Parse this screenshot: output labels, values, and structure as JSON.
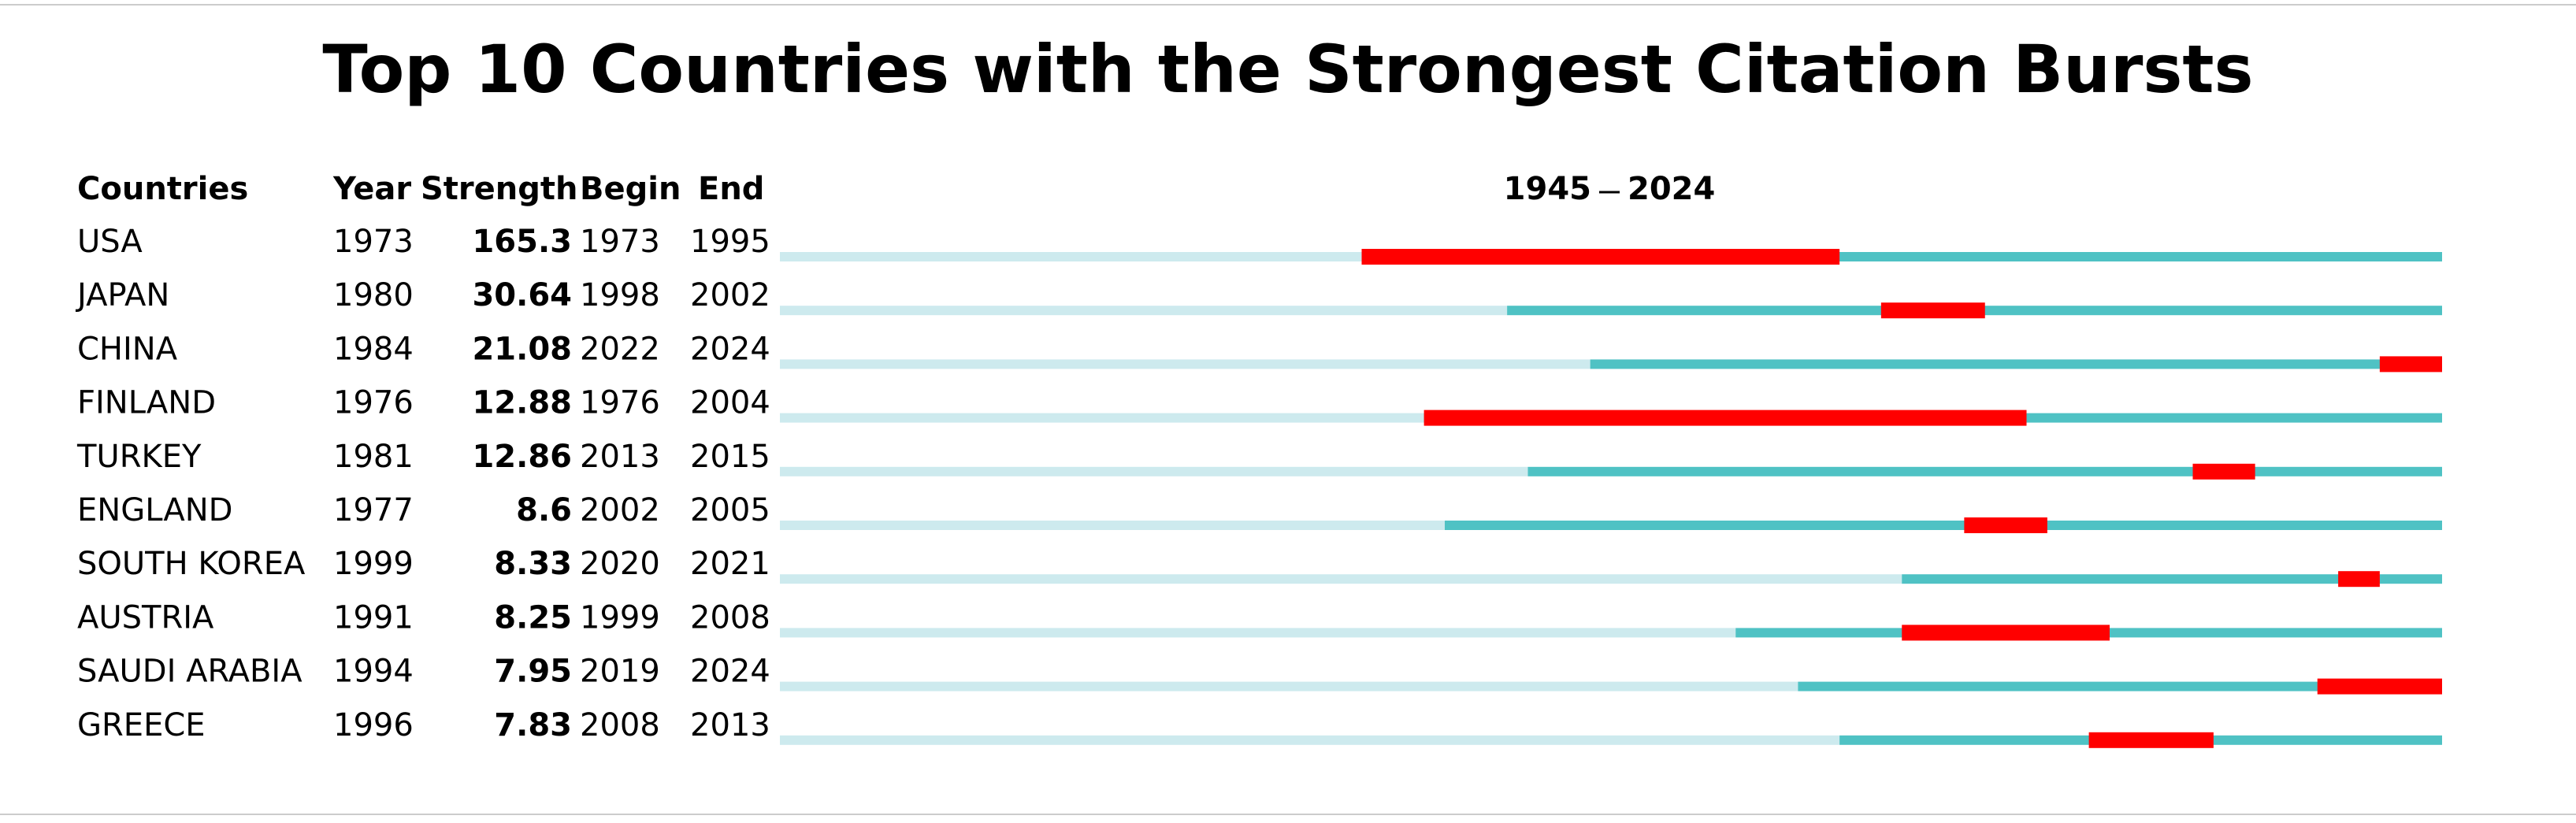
{
  "chart_data": {
    "type": "burst",
    "title": "Top 10 Countries with the Strongest Citation Bursts",
    "columns": [
      "Countries",
      "Year",
      "Strength",
      "Begin",
      "End"
    ],
    "xlim": [
      1945,
      2024
    ],
    "countries": [
      "USA",
      "JAPAN",
      "CHINA",
      "FINLAND",
      "TURKEY",
      "ENGLAND",
      "SOUTH KOREA",
      "AUSTRIA",
      "SAUDI ARABIA",
      "GREECE"
    ],
    "years": [
      1973,
      1980,
      1984,
      1976,
      1981,
      1977,
      1999,
      1991,
      1994,
      1996
    ],
    "strengths": [
      165.3,
      30.64,
      21.08,
      12.88,
      12.86,
      8.6,
      8.33,
      8.25,
      7.95,
      7.83
    ],
    "begins": [
      1973,
      1998,
      2022,
      1976,
      2013,
      2002,
      2020,
      1999,
      2019,
      2008
    ],
    "ends": [
      1995,
      2002,
      2024,
      2004,
      2015,
      2005,
      2021,
      2008,
      2024,
      2013
    ],
    "colors": {
      "before": "#cdeaee",
      "active": "#4fc2c4",
      "burst": "#ff0000"
    }
  }
}
